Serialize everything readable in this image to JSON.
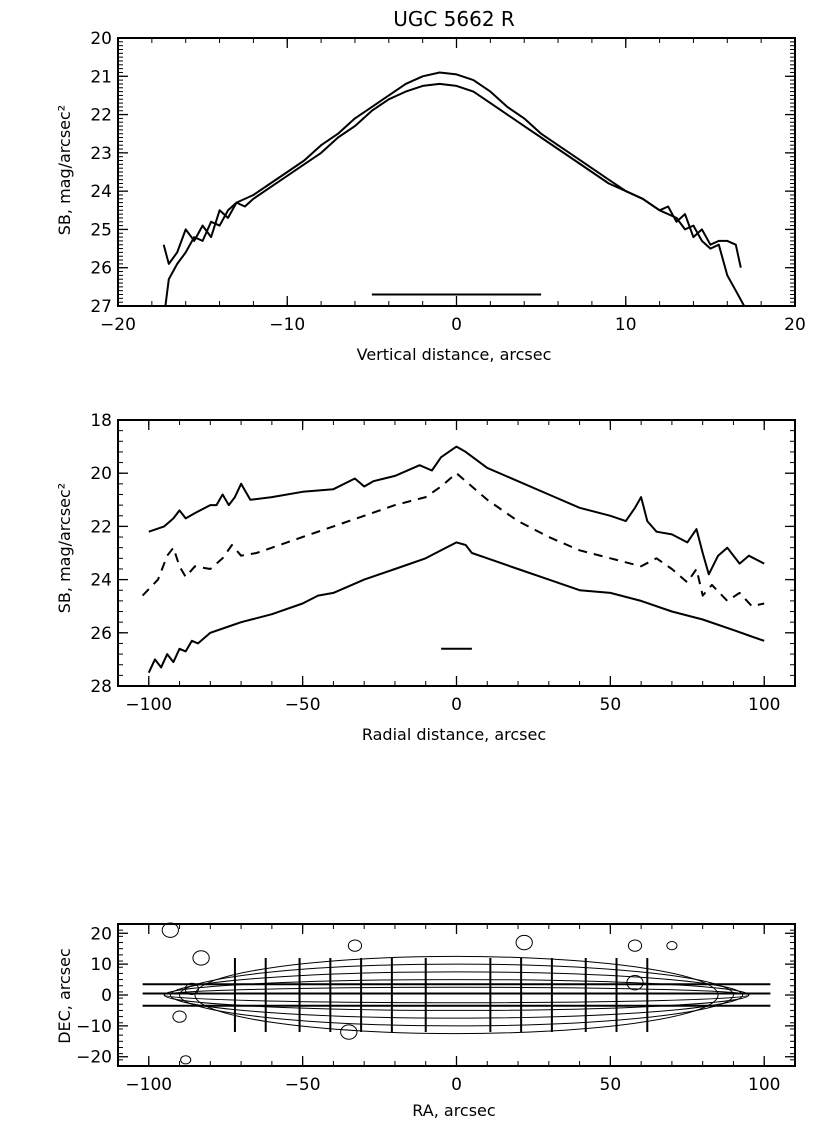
{
  "chart_data": [
    {
      "id": "vertical",
      "type": "line",
      "title": "UGC 5662 R",
      "xlabel": "Vertical distance, arcsec",
      "ylabel": "SB, mag/arcsec²",
      "xlim": [
        -20,
        20
      ],
      "ylim": [
        27,
        20
      ],
      "y_inverted": true,
      "xticks": [
        -20,
        -10,
        0,
        10,
        20
      ],
      "yticks": [
        20,
        21,
        22,
        23,
        24,
        25,
        26,
        27
      ],
      "series": [
        {
          "style": "solid",
          "x": [
            -17.3,
            -17.0,
            -16.5,
            -16.0,
            -15.5,
            -15.0,
            -14.5,
            -14.0,
            -13.5,
            -13.0,
            -12.5,
            -12.0,
            -11.0,
            -10.0,
            -9.0,
            -8.0,
            -7.0,
            -6.0,
            -5.0,
            -4.0,
            -3.0,
            -2.0,
            -1.0,
            0.0,
            1.0,
            2.0,
            3.0,
            4.0,
            5.0,
            6.0,
            7.0,
            8.0,
            9.0,
            10.0,
            11.0,
            12.0,
            12.5,
            13.0,
            13.5,
            14.0,
            14.5,
            15.0,
            15.5,
            16.0,
            16.5,
            16.8
          ],
          "y": [
            25.4,
            25.9,
            25.6,
            25.0,
            25.3,
            24.9,
            25.2,
            24.5,
            24.7,
            24.3,
            24.4,
            24.2,
            23.9,
            23.6,
            23.3,
            23.0,
            22.6,
            22.3,
            21.9,
            21.6,
            21.4,
            21.25,
            21.2,
            21.25,
            21.4,
            21.7,
            22.0,
            22.3,
            22.6,
            22.9,
            23.2,
            23.5,
            23.8,
            24.0,
            24.2,
            24.5,
            24.4,
            24.8,
            24.6,
            25.2,
            25.0,
            25.4,
            25.3,
            25.3,
            25.4,
            26.0
          ]
        },
        {
          "style": "solid",
          "x": [
            -17.2,
            -17.0,
            -16.5,
            -16.0,
            -15.5,
            -15.0,
            -14.5,
            -14.0,
            -13.5,
            -13.0,
            -12.0,
            -11.0,
            -10.0,
            -9.0,
            -8.0,
            -7.0,
            -6.0,
            -5.0,
            -4.0,
            -3.0,
            -2.0,
            -1.0,
            0.0,
            1.0,
            2.0,
            3.0,
            4.0,
            5.0,
            6.0,
            7.0,
            8.0,
            9.0,
            10.0,
            11.0,
            12.0,
            13.0,
            13.5,
            14.0,
            14.5,
            15.0,
            15.5,
            16.0,
            16.5,
            17.0
          ],
          "y": [
            27.0,
            26.3,
            25.9,
            25.6,
            25.2,
            25.3,
            24.8,
            24.9,
            24.5,
            24.3,
            24.1,
            23.8,
            23.5,
            23.2,
            22.8,
            22.5,
            22.1,
            21.8,
            21.5,
            21.2,
            21.0,
            20.9,
            20.95,
            21.1,
            21.4,
            21.8,
            22.1,
            22.5,
            22.8,
            23.1,
            23.4,
            23.7,
            24.0,
            24.2,
            24.5,
            24.7,
            25.0,
            24.9,
            25.3,
            25.5,
            25.4,
            26.2,
            26.6,
            27.0
          ]
        }
      ],
      "scale_bar": {
        "x": [
          -5,
          5
        ],
        "y": 26.7
      }
    },
    {
      "id": "radial",
      "type": "line",
      "title": "",
      "xlabel": "Radial distance, arcsec",
      "ylabel": "SB, mag/arcsec²",
      "xlim": [
        -110,
        110
      ],
      "ylim": [
        28,
        18
      ],
      "y_inverted": true,
      "xticks": [
        -100,
        -50,
        0,
        50,
        100
      ],
      "yticks": [
        18,
        20,
        22,
        24,
        26,
        28
      ],
      "series": [
        {
          "style": "solid",
          "x": [
            -100,
            -95,
            -92,
            -90,
            -88,
            -85,
            -80,
            -78,
            -76,
            -74,
            -72,
            -70,
            -67,
            -60,
            -50,
            -40,
            -33,
            -30,
            -27,
            -20,
            -12,
            -8,
            -5,
            0,
            3,
            10,
            20,
            30,
            40,
            50,
            55,
            58,
            60,
            62,
            65,
            70,
            75,
            78,
            80,
            82,
            85,
            88,
            92,
            95,
            100
          ],
          "y": [
            22.2,
            22.0,
            21.7,
            21.4,
            21.7,
            21.5,
            21.2,
            21.2,
            20.8,
            21.2,
            20.9,
            20.4,
            21.0,
            20.9,
            20.7,
            20.6,
            20.2,
            20.5,
            20.3,
            20.1,
            19.7,
            19.9,
            19.4,
            19.0,
            19.2,
            19.8,
            20.3,
            20.8,
            21.3,
            21.6,
            21.8,
            21.3,
            20.9,
            21.8,
            22.2,
            22.3,
            22.6,
            22.1,
            23.0,
            23.8,
            23.1,
            22.8,
            23.4,
            23.1,
            23.4
          ]
        },
        {
          "style": "dashed",
          "x": [
            -102,
            -97,
            -94,
            -92,
            -90,
            -88,
            -85,
            -80,
            -76,
            -73,
            -70,
            -65,
            -60,
            -50,
            -40,
            -30,
            -20,
            -10,
            -5,
            0,
            5,
            10,
            20,
            30,
            40,
            50,
            60,
            65,
            70,
            75,
            78,
            80,
            83,
            88,
            92,
            96,
            100
          ],
          "y": [
            24.6,
            24.0,
            23.1,
            22.8,
            23.5,
            23.9,
            23.5,
            23.6,
            23.2,
            22.7,
            23.1,
            23.0,
            22.8,
            22.4,
            22.0,
            21.6,
            21.2,
            20.9,
            20.5,
            20.0,
            20.5,
            21.0,
            21.8,
            22.4,
            22.9,
            23.2,
            23.5,
            23.2,
            23.6,
            24.1,
            23.6,
            24.6,
            24.2,
            24.8,
            24.5,
            25.0,
            24.9
          ]
        },
        {
          "style": "solid",
          "x": [
            -100,
            -98,
            -96,
            -94,
            -92,
            -90,
            -88,
            -86,
            -84,
            -80,
            -75,
            -70,
            -60,
            -50,
            -45,
            -40,
            -30,
            -20,
            -10,
            -5,
            0,
            3,
            5,
            10,
            20,
            30,
            40,
            50,
            60,
            70,
            80,
            90,
            95,
            100
          ],
          "y": [
            27.5,
            27.0,
            27.3,
            26.8,
            27.1,
            26.6,
            26.7,
            26.3,
            26.4,
            26.0,
            25.8,
            25.6,
            25.3,
            24.9,
            24.6,
            24.5,
            24.0,
            23.6,
            23.2,
            22.9,
            22.6,
            22.7,
            23.0,
            23.2,
            23.6,
            24.0,
            24.4,
            24.5,
            24.8,
            25.2,
            25.5,
            25.9,
            26.1,
            26.3
          ]
        }
      ],
      "scale_bar": {
        "x": [
          -5,
          5
        ],
        "y": 26.6
      }
    },
    {
      "id": "map",
      "type": "contour",
      "title": "",
      "xlabel": "RA, arcsec",
      "ylabel": "DEC, arcsec",
      "xlim": [
        -110,
        110
      ],
      "ylim": [
        -23,
        23
      ],
      "xticks": [
        -100,
        -50,
        0,
        50,
        100
      ],
      "yticks": [
        20,
        10,
        0,
        -10,
        -20
      ],
      "horizontal_lines_y": [
        3.5,
        0.5,
        -3.5
      ],
      "slit_x": [
        -72,
        -62,
        -51,
        -41,
        -31,
        -21,
        -10,
        11,
        21,
        31,
        42,
        52,
        62
      ],
      "isophotes": [
        {
          "a": 95,
          "b": 2.5
        },
        {
          "a": 95,
          "b": 5
        },
        {
          "a": 93,
          "b": 7.5
        },
        {
          "a": 90,
          "b": 10
        },
        {
          "a": 85,
          "b": 12.5
        }
      ],
      "stars": [
        {
          "x": -93,
          "y": 21,
          "r": 2
        },
        {
          "x": -83,
          "y": 12,
          "r": 2
        },
        {
          "x": -86,
          "y": 2,
          "r": 1.5
        },
        {
          "x": -90,
          "y": -7,
          "r": 1.5
        },
        {
          "x": -35,
          "y": -12,
          "r": 2
        },
        {
          "x": -33,
          "y": 16,
          "r": 1.5
        },
        {
          "x": 22,
          "y": 17,
          "r": 2
        },
        {
          "x": 58,
          "y": 16,
          "r": 1.5
        },
        {
          "x": 70,
          "y": 16,
          "r": 1
        },
        {
          "x": 58,
          "y": 4,
          "r": 2
        },
        {
          "x": -88,
          "y": -21,
          "r": 1
        }
      ]
    }
  ]
}
